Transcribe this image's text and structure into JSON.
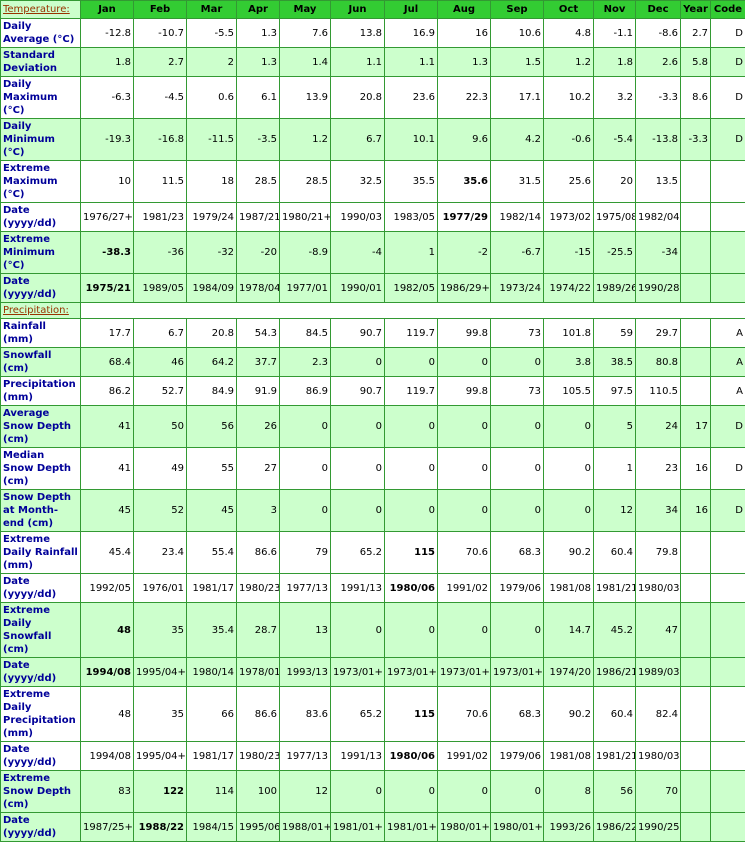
{
  "table": {
    "columns": [
      "Jan",
      "Feb",
      "Mar",
      "Apr",
      "May",
      "Jun",
      "Jul",
      "Aug",
      "Sep",
      "Oct",
      "Nov",
      "Dec",
      "Year",
      "Code"
    ],
    "sections": [
      {
        "title": "Temperature:",
        "rows": [
          {
            "label": "Daily Average (°C)",
            "shaded": false,
            "cells": [
              -12.8,
              -10.7,
              -5.5,
              1.3,
              7.6,
              13.8,
              16.9,
              16,
              10.6,
              4.8,
              -1.1,
              -8.6,
              2.7,
              "D"
            ]
          },
          {
            "label": "Standard Deviation",
            "shaded": true,
            "cells": [
              1.8,
              2.7,
              2,
              1.3,
              1.4,
              1.1,
              1.1,
              1.3,
              1.5,
              1.2,
              1.8,
              2.6,
              5.8,
              "D"
            ]
          },
          {
            "label": "Daily Maximum (°C)",
            "shaded": false,
            "cells": [
              -6.3,
              -4.5,
              0.6,
              6.1,
              13.9,
              20.8,
              23.6,
              22.3,
              17.1,
              10.2,
              3.2,
              -3.3,
              8.6,
              "D"
            ]
          },
          {
            "label": "Daily Minimum (°C)",
            "shaded": true,
            "cells": [
              -19.3,
              -16.8,
              -11.5,
              -3.5,
              1.2,
              6.7,
              10.1,
              9.6,
              4.2,
              -0.6,
              -5.4,
              -13.8,
              -3.3,
              "D"
            ]
          },
          {
            "label": "Extreme Maximum (°C)",
            "shaded": false,
            "bold": 7,
            "cells": [
              10,
              11.5,
              18,
              28.5,
              28.5,
              32.5,
              35.5,
              35.6,
              31.5,
              25.6,
              20,
              13.5,
              null,
              null
            ]
          },
          {
            "label": "Date (yyyy/dd)",
            "shaded": false,
            "bold": 7,
            "cells": [
              "1976/27+",
              "1981/23",
              "1979/24",
              "1987/21",
              "1980/21+",
              "1990/03",
              "1983/05",
              "1977/29",
              "1982/14",
              "1973/02",
              "1975/08",
              "1982/04",
              null,
              null
            ]
          },
          {
            "label": "Extreme Minimum (°C)",
            "shaded": true,
            "bold": 0,
            "cells": [
              -38.3,
              -36,
              -32,
              -20,
              -8.9,
              -4,
              1,
              -2,
              -6.7,
              -15,
              -25.5,
              -34,
              null,
              null
            ]
          },
          {
            "label": "Date (yyyy/dd)",
            "shaded": true,
            "bold": 0,
            "cells": [
              "1975/21",
              "1989/05",
              "1984/09",
              "1978/04",
              "1977/01",
              "1990/01",
              "1982/05",
              "1986/29+",
              "1973/24",
              "1974/22",
              "1989/26",
              "1990/28",
              null,
              null
            ]
          }
        ]
      },
      {
        "title": "Precipitation:",
        "rows": [
          {
            "label": "Rainfall (mm)",
            "shaded": false,
            "cells": [
              17.7,
              6.7,
              20.8,
              54.3,
              84.5,
              90.7,
              119.7,
              99.8,
              73,
              101.8,
              59,
              29.7,
              null,
              "A"
            ]
          },
          {
            "label": "Snowfall (cm)",
            "shaded": true,
            "cells": [
              68.4,
              46,
              64.2,
              37.7,
              2.3,
              0,
              0,
              0,
              0,
              3.8,
              38.5,
              80.8,
              null,
              "A"
            ]
          },
          {
            "label": "Precipitation (mm)",
            "shaded": false,
            "cells": [
              86.2,
              52.7,
              84.9,
              91.9,
              86.9,
              90.7,
              119.7,
              99.8,
              73,
              105.5,
              97.5,
              110.5,
              null,
              "A"
            ]
          },
          {
            "label": "Average Snow Depth (cm)",
            "shaded": true,
            "cells": [
              41,
              50,
              56,
              26,
              0,
              0,
              0,
              0,
              0,
              0,
              5,
              24,
              17,
              "D"
            ]
          },
          {
            "label": "Median Snow Depth (cm)",
            "shaded": false,
            "cells": [
              41,
              49,
              55,
              27,
              0,
              0,
              0,
              0,
              0,
              0,
              1,
              23,
              16,
              "D"
            ]
          },
          {
            "label": "Snow Depth at Month-end (cm)",
            "shaded": true,
            "cells": [
              45,
              52,
              45,
              3,
              0,
              0,
              0,
              0,
              0,
              0,
              12,
              34,
              16,
              "D"
            ]
          },
          {
            "label": "Extreme Daily Rainfall (mm)",
            "shaded": false,
            "bold": 6,
            "cells": [
              45.4,
              23.4,
              55.4,
              86.6,
              79,
              65.2,
              115,
              70.6,
              68.3,
              90.2,
              60.4,
              79.8,
              null,
              null
            ]
          },
          {
            "label": "Date (yyyy/dd)",
            "shaded": false,
            "bold": 6,
            "cells": [
              "1992/05",
              "1976/01",
              "1981/17",
              "1980/23",
              "1977/13",
              "1991/13",
              "1980/06",
              "1991/02",
              "1979/06",
              "1981/08",
              "1981/21",
              "1980/03",
              null,
              null
            ]
          },
          {
            "label": "Extreme Daily Snowfall (cm)",
            "shaded": true,
            "bold": 0,
            "cells": [
              48,
              35,
              35.4,
              28.7,
              13,
              0,
              0,
              0,
              0,
              14.7,
              45.2,
              47,
              null,
              null
            ]
          },
          {
            "label": "Date (yyyy/dd)",
            "shaded": true,
            "bold": 0,
            "cells": [
              "1994/08",
              "1995/04+",
              "1980/14",
              "1978/01",
              "1993/13",
              "1973/01+",
              "1973/01+",
              "1973/01+",
              "1973/01+",
              "1974/20",
              "1986/21",
              "1989/03",
              null,
              null
            ]
          },
          {
            "label": "Extreme Daily Precipitation (mm)",
            "shaded": false,
            "bold": 6,
            "cells": [
              48,
              35,
              66,
              86.6,
              83.6,
              65.2,
              115,
              70.6,
              68.3,
              90.2,
              60.4,
              82.4,
              null,
              null
            ]
          },
          {
            "label": "Date (yyyy/dd)",
            "shaded": false,
            "bold": 6,
            "cells": [
              "1994/08",
              "1995/04+",
              "1981/17",
              "1980/23",
              "1977/13",
              "1991/13",
              "1980/06",
              "1991/02",
              "1979/06",
              "1981/08",
              "1981/21",
              "1980/03",
              null,
              null
            ]
          },
          {
            "label": "Extreme Snow Depth (cm)",
            "shaded": true,
            "bold": 1,
            "cells": [
              83,
              122,
              114,
              100,
              12,
              0,
              0,
              0,
              0,
              8,
              56,
              70,
              null,
              null
            ]
          },
          {
            "label": "Date (yyyy/dd)",
            "shaded": true,
            "bold": 1,
            "cells": [
              "1987/25+",
              "1988/22",
              "1984/15",
              "1995/06",
              "1988/01+",
              "1981/01+",
              "1981/01+",
              "1980/01+",
              "1980/01+",
              "1993/26",
              "1986/22",
              "1990/25",
              null,
              null
            ]
          }
        ]
      }
    ]
  }
}
